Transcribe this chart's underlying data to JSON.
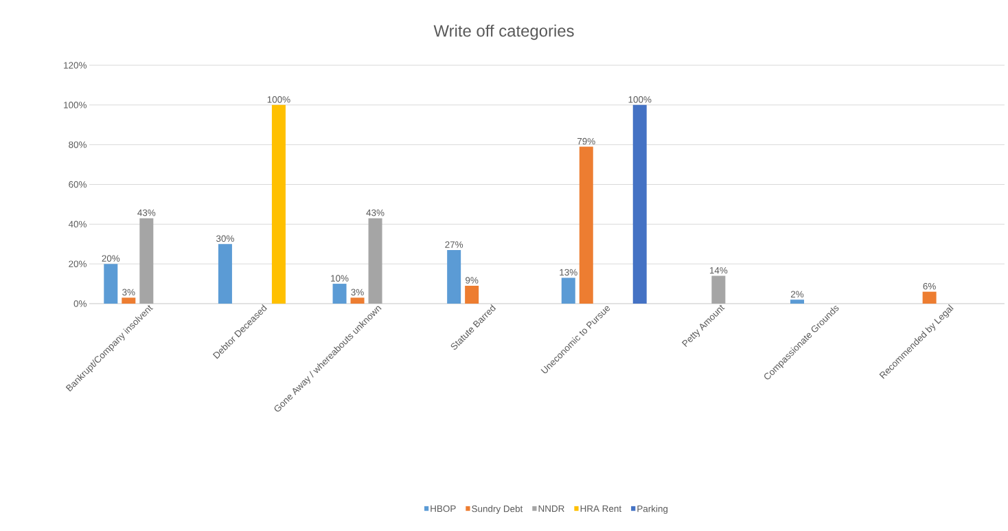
{
  "chart_data": {
    "type": "bar",
    "title": "Write off categories",
    "categories": [
      "Bankrupt/Company insolvent",
      "Debtor Deceased",
      "Gone Away / whereabouts unknown",
      "Statute Barred",
      "Uneconomic to Pursue",
      "Petty Amount",
      "Compassionate Grounds",
      "Recommended by Legal"
    ],
    "series": [
      {
        "name": "HBOP",
        "color": "#5b9bd5",
        "values": [
          20,
          30,
          10,
          27,
          13,
          null,
          2,
          null
        ],
        "value_labels": [
          "20%",
          "30%",
          "10%",
          "27%",
          "13%",
          null,
          "2%",
          null
        ]
      },
      {
        "name": "Sundry Debt",
        "color": "#ed7d31",
        "values": [
          3,
          null,
          3,
          9,
          79,
          null,
          null,
          6
        ],
        "value_labels": [
          "3%",
          null,
          "3%",
          "9%",
          "79%",
          null,
          null,
          "6%"
        ]
      },
      {
        "name": "NNDR",
        "color": "#a5a5a5",
        "values": [
          43,
          null,
          43,
          null,
          null,
          14,
          null,
          null
        ],
        "value_labels": [
          "43%",
          null,
          "43%",
          null,
          null,
          "14%",
          null,
          null
        ]
      },
      {
        "name": "HRA Rent",
        "color": "#ffc000",
        "values": [
          null,
          100,
          null,
          null,
          null,
          null,
          null,
          null
        ],
        "value_labels": [
          null,
          "100%",
          null,
          null,
          null,
          null,
          null,
          null
        ]
      },
      {
        "name": "Parking",
        "color": "#4472c4",
        "values": [
          null,
          null,
          null,
          null,
          100,
          null,
          null,
          null
        ],
        "value_labels": [
          null,
          null,
          null,
          null,
          "100%",
          null,
          null,
          null
        ]
      }
    ],
    "ylim": [
      0,
      120
    ],
    "yticks": [
      {
        "value": 0,
        "label": "0%"
      },
      {
        "value": 20,
        "label": "20%"
      },
      {
        "value": 40,
        "label": "40%"
      },
      {
        "value": 60,
        "label": "60%"
      },
      {
        "value": 80,
        "label": "80%"
      },
      {
        "value": 100,
        "label": "100%"
      },
      {
        "value": 120,
        "label": "120%"
      }
    ],
    "grid": "y",
    "legend": "bottom"
  }
}
